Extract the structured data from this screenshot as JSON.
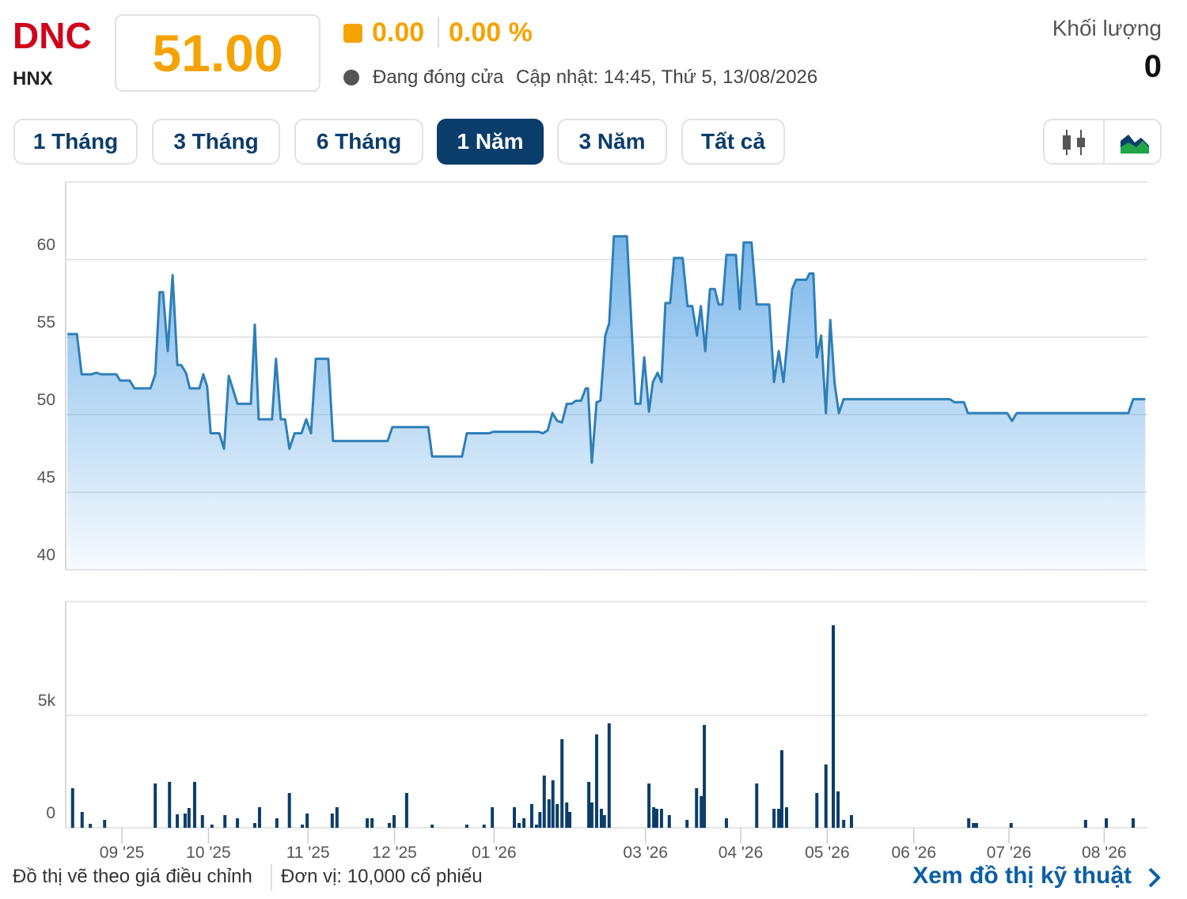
{
  "header": {
    "ticker": "DNC",
    "exchange": "HNX",
    "price": "51.00",
    "change": "0.00",
    "change_pct": "0.00 %",
    "status": "Đang đóng cửa",
    "updated": "Cập nhật: 14:45, Thứ 5, 13/08/2026",
    "volume_label": "Khối lượng",
    "volume": "0"
  },
  "tabs": [
    "1 Tháng",
    "3 Tháng",
    "6 Tháng",
    "1 Năm",
    "3 Năm",
    "Tất cả"
  ],
  "active_tab": 3,
  "footer": {
    "note": "Đồ thị vẽ theo giá điều chỉnh",
    "unit": "Đơn vị: 10,000 cổ phiếu",
    "link": "Xem đồ thị kỹ thuật"
  },
  "chart_data": [
    {
      "type": "area",
      "color": "#2e7fb8",
      "x": [
        0.4,
        2.6,
        3.7,
        5.9,
        7.1,
        8.2,
        11.7,
        12.6,
        14.8,
        15.9,
        19.6,
        20.7,
        21.7,
        22.5,
        23.6,
        24.7,
        25.8,
        26.7,
        27.8,
        28.7,
        30.9,
        31.8,
        32.7,
        33.5,
        35.5,
        36.6,
        37.7,
        39.7,
        42.8,
        43.7,
        44.6,
        47.7,
        48.6,
        49.7,
        50.7,
        51.7,
        52.9,
        54.5,
        55.6,
        56.7,
        57.8,
        60.7,
        61.8,
        74.4,
        75.5,
        76.6,
        83.8,
        84.7,
        91.6,
        92.7,
        97.8,
        98.9,
        109.2,
        110.3,
        111.4,
        112.5,
        113.6,
        114.7,
        115.8,
        116.9,
        117.9,
        119.1,
        120.2,
        120.7,
        121.6,
        122.7,
        123.6,
        124.7,
        125.6,
        126.7,
        129.7,
        131.7,
        132.8,
        133.7,
        134.8,
        135.7,
        136.8,
        137.7,
        138.6,
        139.7,
        140.6,
        142.6,
        143.7,
        144.8,
        145.9,
        146.8,
        147.8,
        148.9,
        150.0,
        150.9,
        151.8,
        152.7,
        154.9,
        155.8,
        156.7,
        158.5,
        159.7,
        162.6,
        163.7,
        164.8,
        165.9,
        167.9,
        168.8,
        171.2,
        171.9,
        172.8,
        173.6,
        174.6,
        175.7,
        176.7,
        177.7,
        178.7,
        179.8,
        204.3,
        205.4,
        207.6,
        208.5,
        217.6,
        218.7,
        219.8,
        245.6,
        246.7,
        249.5
      ],
      "values": [
        55.2,
        55.2,
        52.6,
        52.6,
        52.7,
        52.6,
        52.6,
        52.2,
        52.2,
        51.7,
        51.7,
        52.6,
        57.9,
        57.9,
        54.1,
        59.0,
        53.2,
        53.2,
        52.7,
        51.7,
        51.7,
        52.6,
        51.8,
        48.8,
        48.8,
        47.8,
        52.5,
        50.7,
        50.7,
        55.8,
        49.7,
        49.7,
        53.6,
        49.7,
        49.7,
        47.8,
        48.8,
        48.8,
        49.7,
        48.8,
        53.6,
        53.6,
        48.3,
        48.3,
        49.2,
        49.2,
        49.2,
        47.3,
        47.3,
        48.8,
        48.8,
        48.9,
        48.9,
        48.8,
        49.0,
        50.1,
        49.6,
        49.5,
        50.7,
        50.7,
        50.9,
        50.9,
        51.7,
        51.7,
        46.9,
        50.8,
        50.9,
        55.1,
        55.9,
        61.5,
        61.5,
        50.7,
        50.7,
        53.7,
        50.2,
        52.1,
        52.7,
        52.1,
        57.2,
        57.2,
        60.1,
        60.1,
        57.0,
        57.0,
        55.1,
        57.0,
        54.1,
        58.1,
        58.1,
        57.1,
        57.1,
        60.3,
        60.3,
        56.8,
        61.1,
        61.1,
        57.1,
        57.1,
        52.1,
        54.1,
        52.1,
        58.1,
        58.7,
        58.7,
        59.1,
        59.1,
        53.7,
        55.1,
        50.1,
        56.1,
        52.0,
        50.1,
        51.0,
        51.0,
        50.8,
        50.8,
        50.1,
        50.1,
        49.6,
        50.1,
        50.1,
        51.0,
        51.0
      ],
      "xlim": [
        0,
        250
      ],
      "ylim": [
        40,
        65
      ],
      "yticks": [
        40,
        45,
        50,
        55,
        60
      ],
      "grid": true
    },
    {
      "type": "bar",
      "color": "#0b3d6b",
      "x": [
        1.6,
        3.8,
        5.7,
        9.0,
        20.7,
        24.0,
        25.8,
        27.6,
        28.5,
        29.8,
        31.6,
        33.8,
        36.8,
        39.7,
        43.7,
        44.8,
        48.8,
        51.7,
        54.7,
        55.8,
        61.6,
        62.7,
        69.7,
        70.8,
        74.8,
        75.9,
        78.8,
        84.7,
        92.7,
        96.7,
        98.6,
        103.7,
        104.8,
        105.9,
        107.7,
        108.8,
        109.6,
        110.6,
        111.7,
        112.6,
        113.6,
        114.7,
        115.8,
        116.5,
        120.9,
        121.6,
        122.7,
        123.8,
        124.5,
        125.6,
        134.8,
        135.9,
        136.6,
        137.7,
        139.5,
        143.6,
        145.8,
        146.9,
        147.6,
        152.7,
        159.7,
        163.7,
        164.8,
        165.5,
        166.6,
        173.6,
        175.7,
        177.4,
        178.5,
        179.8,
        181.6,
        208.7,
        209.8,
        210.5,
        218.5,
        235.7,
        240.5,
        246.7
      ],
      "values": [
        1760,
        704,
        176,
        352,
        1971,
        2042,
        598,
        634,
        880,
        2042,
        563,
        141,
        563,
        422,
        211,
        915,
        422,
        1549,
        141,
        634,
        634,
        915,
        422,
        422,
        211,
        563,
        1549,
        141,
        141,
        141,
        915,
        915,
        211,
        422,
        1056,
        141,
        704,
        2323,
        1267,
        2112,
        1056,
        3942,
        1126,
        704,
        2042,
        1126,
        4154,
        845,
        563,
        4646,
        1971,
        915,
        845,
        845,
        563,
        352,
        1760,
        1408,
        4576,
        422,
        1971,
        845,
        845,
        3450,
        915,
        1549,
        2816,
        9011,
        1619,
        352,
        563,
        422,
        211,
        211,
        211,
        352,
        422,
        422
      ],
      "xlim": [
        0,
        250
      ],
      "ylim": [
        0,
        10000
      ],
      "yticks": [
        0,
        {
          "value": 5000,
          "label": "5k"
        }
      ],
      "grid": true,
      "xticks": [
        {
          "value": 13,
          "label": "09 '25"
        },
        {
          "value": 33,
          "label": "10 '25"
        },
        {
          "value": 56,
          "label": "11 '25"
        },
        {
          "value": 76,
          "label": "12 '25"
        },
        {
          "value": 99,
          "label": "01 '26"
        },
        {
          "value": 134,
          "label": "03 '26"
        },
        {
          "value": 156,
          "label": "04 '26"
        },
        {
          "value": 176,
          "label": "05 '26"
        },
        {
          "value": 196,
          "label": "06 '26"
        },
        {
          "value": 218,
          "label": "07 '26"
        },
        {
          "value": 240,
          "label": "08 '26"
        }
      ]
    }
  ]
}
